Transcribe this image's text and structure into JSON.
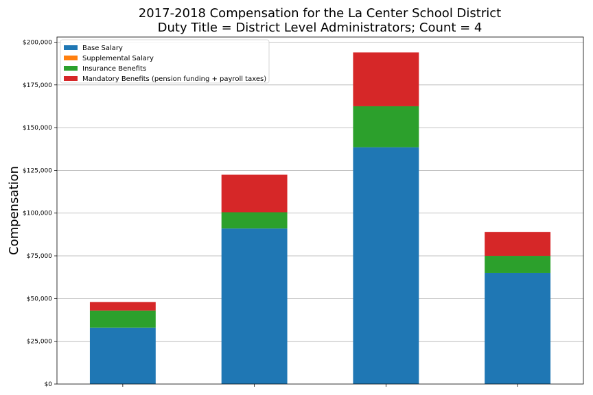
{
  "chart_data": {
    "type": "bar",
    "stacked": true,
    "title": [
      "2017-2018 Compensation for the La Center School District",
      "Duty Title = District Level Administrators; Count = 4"
    ],
    "xlabel": "",
    "ylabel": "Compensation",
    "ylim": [
      0,
      203000
    ],
    "yticks": [
      0,
      25000,
      50000,
      75000,
      100000,
      125000,
      150000,
      175000,
      200000
    ],
    "ytick_labels": [
      "$0",
      "$25,000",
      "$50,000",
      "$75,000",
      "$100,000",
      "$125,000",
      "$150,000",
      "$175,000",
      "$200,000"
    ],
    "categories": [
      "",
      "",
      "",
      ""
    ],
    "grid": "horizontal",
    "legend_position": "top-left",
    "series": [
      {
        "name": "Base Salary",
        "color": "#1f77b4",
        "values": [
          33000,
          91000,
          138500,
          65000
        ]
      },
      {
        "name": "Supplemental Salary",
        "color": "#ff7f0e",
        "values": [
          0,
          0,
          0,
          0
        ]
      },
      {
        "name": "Insurance Benefits",
        "color": "#2ca02c",
        "values": [
          10000,
          9500,
          24000,
          10000
        ]
      },
      {
        "name": "Mandatory Benefits (pension funding + payroll taxes)",
        "color": "#d62728",
        "values": [
          5000,
          22000,
          31500,
          14000
        ]
      }
    ]
  }
}
